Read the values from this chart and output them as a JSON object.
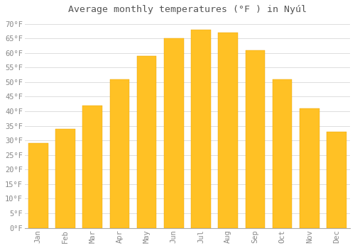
{
  "title": "Average monthly temperatures (°F ) in Nyúl",
  "months": [
    "Jan",
    "Feb",
    "Mar",
    "Apr",
    "May",
    "Jun",
    "Jul",
    "Aug",
    "Sep",
    "Oct",
    "Nov",
    "Dec"
  ],
  "values": [
    29,
    34,
    42,
    51,
    59,
    65,
    68,
    67,
    61,
    51,
    41,
    33
  ],
  "bar_color_top": "#FFC125",
  "bar_color_bottom": "#FFB000",
  "bar_edge_color": "#E8A000",
  "background_color": "#FFFFFF",
  "grid_color": "#DDDDDD",
  "text_color": "#888888",
  "title_color": "#555555",
  "ylim": [
    0,
    72
  ],
  "yticks": [
    0,
    5,
    10,
    15,
    20,
    25,
    30,
    35,
    40,
    45,
    50,
    55,
    60,
    65,
    70
  ],
  "title_fontsize": 9.5,
  "tick_fontsize": 7.5,
  "bar_width": 0.72
}
